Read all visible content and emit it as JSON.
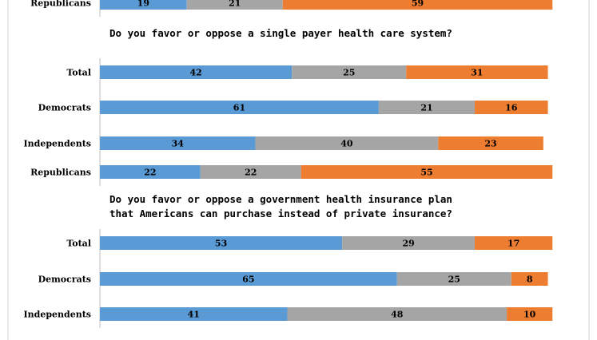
{
  "colors": {
    "favor": "#5b9bd5",
    "neither": "#a5a5a5",
    "oppose": "#ed7d31",
    "axis": "#bfbfbf",
    "frame": "#d0d0d0"
  },
  "chart_data": [
    {
      "type": "bar",
      "orientation": "horizontal",
      "stacked": true,
      "title": "",
      "categories": [
        "Republicans"
      ],
      "series": [
        {
          "values": [
            19
          ]
        },
        {
          "values": [
            21
          ]
        },
        {
          "values": [
            59
          ]
        }
      ]
    },
    {
      "type": "bar",
      "orientation": "horizontal",
      "stacked": true,
      "title": "Do you favor or oppose a single payer health care system?",
      "categories": [
        "Total",
        "Democrats",
        "Independents",
        "Republicans"
      ],
      "series": [
        {
          "values": [
            42,
            61,
            34,
            22
          ]
        },
        {
          "values": [
            25,
            21,
            40,
            22
          ]
        },
        {
          "values": [
            31,
            16,
            23,
            55
          ]
        }
      ]
    },
    {
      "type": "bar",
      "orientation": "horizontal",
      "stacked": true,
      "title_lines": [
        "Do you favor or oppose a government health insurance plan",
        "that Americans can purchase instead of private insurance?"
      ],
      "categories": [
        "Total",
        "Democrats",
        "Independents"
      ],
      "series": [
        {
          "values": [
            53,
            65,
            41
          ]
        },
        {
          "values": [
            29,
            25,
            48
          ]
        },
        {
          "values": [
            17,
            8,
            10
          ]
        }
      ]
    }
  ]
}
